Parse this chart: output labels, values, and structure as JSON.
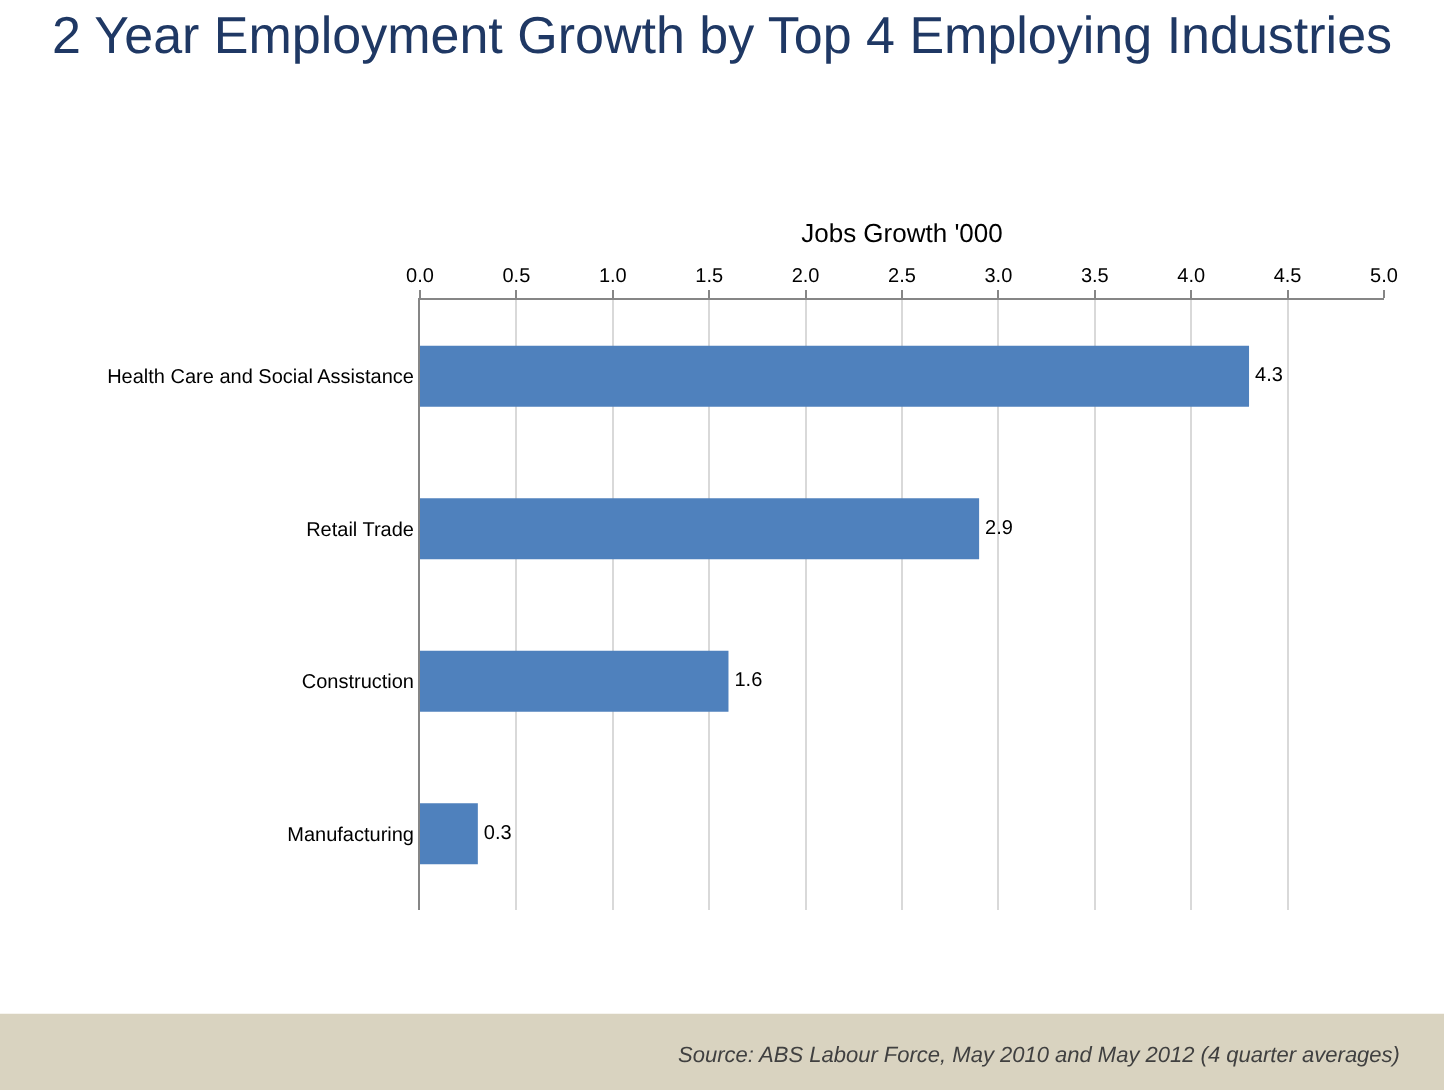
{
  "chart_data": {
    "type": "bar",
    "orientation": "horizontal",
    "title": "2 Year Employment Growth by Top 4 Employing Industries",
    "xlabel": "Jobs Growth '000",
    "categories": [
      "Health Care and Social Assistance",
      "Retail Trade",
      "Construction",
      "Manufacturing"
    ],
    "values": [
      4.3,
      2.9,
      1.6,
      0.3
    ],
    "color": "#4f81bd",
    "data_labels": true,
    "grid": "x",
    "xlim": [
      0,
      5
    ],
    "xticks": [
      {
        "value": 0,
        "label": "0.0"
      },
      {
        "value": 0.5,
        "label": "0.5"
      },
      {
        "value": 1,
        "label": "1.0"
      },
      {
        "value": 1.5,
        "label": "1.5"
      },
      {
        "value": 2,
        "label": "2.0"
      },
      {
        "value": 2.5,
        "label": "2.5"
      },
      {
        "value": 3,
        "label": "3.0"
      },
      {
        "value": 3.5,
        "label": "3.5"
      },
      {
        "value": 4,
        "label": "4.0"
      },
      {
        "value": 4.5,
        "label": "4.5"
      },
      {
        "value": 5,
        "label": "5.0"
      }
    ],
    "annotations": [
      "Source: ABS Labour Force, May 2010 and May 2012 (4 quarter averages)"
    ]
  }
}
